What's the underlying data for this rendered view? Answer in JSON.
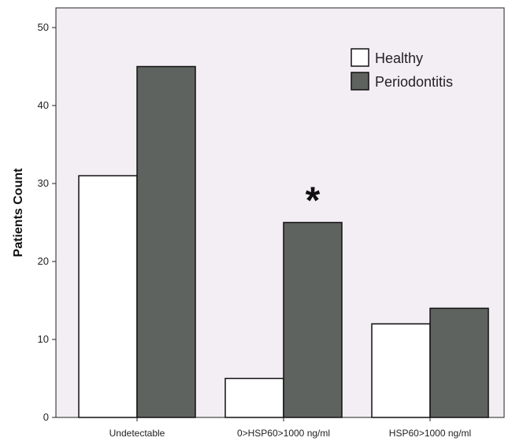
{
  "chart_data": {
    "type": "bar",
    "categories": [
      "Undetectable",
      "0>HSP60>1000 ng/ml",
      "HSP60>1000 ng/ml"
    ],
    "series": [
      {
        "name": "Healthy",
        "values": [
          31,
          5,
          12
        ],
        "color": "#ffffff"
      },
      {
        "name": "Periodontitis",
        "values": [
          45,
          25,
          14
        ],
        "color": "#5f635f"
      }
    ],
    "title": "",
    "xlabel": "",
    "ylabel": "Patients Count",
    "ylim": [
      0,
      50
    ],
    "yticks": [
      0,
      10,
      20,
      30,
      40,
      50
    ],
    "grid": false,
    "legend_position": "top-right",
    "plot_background": "#f3eef4",
    "annotations": [
      {
        "text": "*",
        "category": "0>HSP60>1000 ng/ml",
        "series": "Periodontitis"
      }
    ]
  }
}
